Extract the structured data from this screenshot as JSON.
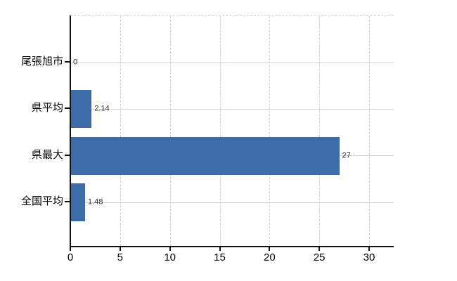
{
  "chart_data": {
    "type": "bar",
    "orientation": "horizontal",
    "title": "",
    "xlabel": "",
    "ylabel": "",
    "categories": [
      "尾張旭市",
      "県平均",
      "県最大",
      "全国平均"
    ],
    "values": [
      0,
      2.14,
      27,
      1.48
    ],
    "value_labels": [
      "0",
      "2.14",
      "27",
      "1.48"
    ],
    "x_ticks": [
      0,
      5,
      10,
      15,
      20,
      25,
      30
    ],
    "xlim": [
      0,
      32.5
    ],
    "grid": "on",
    "legend": "none",
    "colors": {
      "bar": "#3b6ca8",
      "hgrid": "#ccd4cb",
      "vgrid": "#cfcfcf",
      "axis": "#111111",
      "category_label": "#000000",
      "value_label": "#333333"
    }
  }
}
